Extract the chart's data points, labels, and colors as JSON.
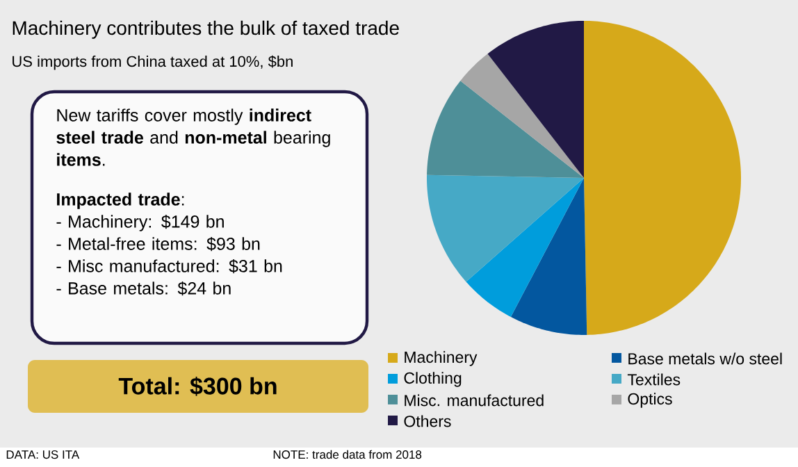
{
  "chart_data": {
    "type": "pie",
    "title": "Machinery contributes the bulk of taxed trade",
    "subtitle": "US imports from China taxed at 10%, $bn",
    "categories": [
      "Machinery",
      "Base metals w/o steel",
      "Clothing",
      "Textiles",
      "Misc. manufactured",
      "Optics",
      "Others"
    ],
    "values": [
      49.7,
      8.0,
      5.8,
      11.8,
      10.3,
      3.9,
      10.5
    ],
    "colors": [
      "#d6a91a",
      "#03579f",
      "#009ddc",
      "#46a9c6",
      "#4e8f98",
      "#a6a6a6",
      "#211945"
    ],
    "legend": "bottom",
    "annotations": [
      "New tariffs cover mostly **indirect steel trade** and **non-metal** bearing **items**.",
      "**Impacted trade**:",
      "- Machinery: $149 bn",
      "- Metal-free items: $93 bn",
      "- Misc manufactured: $31 bn",
      "- Base metals: $24 bn",
      "Total: $300 bn",
      "DATA: US ITA",
      "NOTE: trade data from 2018"
    ]
  }
}
